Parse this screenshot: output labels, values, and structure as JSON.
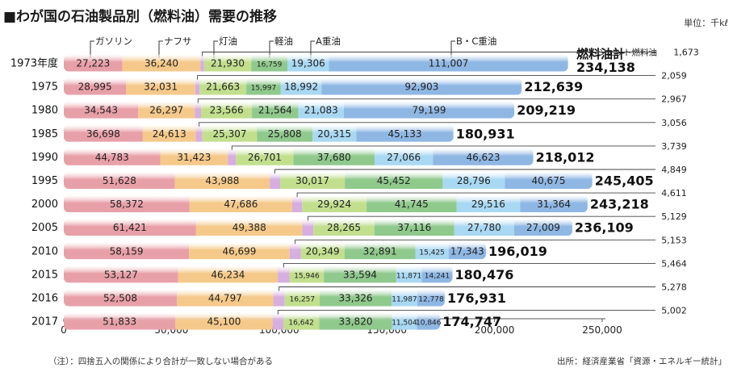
{
  "title": "■わが国の石油製品別（燃料油）需要の推移",
  "unit": "単位：千kℓ",
  "note": "（注）：四捨五入の関係により合計が一致しない場合がある",
  "source": "出所：経済産業省「資源・エネルギー統計」",
  "colors": {
    "gasoline": "#e8a0a8",
    "naphtha": "#f5c98a",
    "jet": "#d7aee0",
    "kerosene": "#c2df8e",
    "light_oil": "#8fc98c",
    "a_heavy": "#a9d8f2",
    "bc_heavy": "#8fb7e4"
  },
  "chart_data": {
    "type": "bar",
    "orientation": "horizontal",
    "stacked": true,
    "title": "■わが国の石油製品別（燃料油）需要の推移",
    "xlim": [
      0,
      250000
    ],
    "xticks": [
      0,
      50000,
      100000,
      150000,
      200000,
      250000
    ],
    "xtick_labels": [
      "0",
      "50,000",
      "100,000",
      "150,000",
      "200,000",
      "250,000"
    ],
    "categories": [
      "1973年度",
      "1975",
      "1980",
      "1985",
      "1990",
      "1995",
      "2000",
      "2005",
      "2010",
      "2015",
      "2016",
      "2017"
    ],
    "series": [
      {
        "key": "gasoline",
        "name": "ガソリン",
        "values": [
          27223,
          28995,
          34543,
          36698,
          44783,
          51628,
          58372,
          61421,
          58159,
          53127,
          52508,
          51833
        ]
      },
      {
        "key": "naphtha",
        "name": "ナフサ",
        "values": [
          36240,
          32031,
          26297,
          24613,
          31423,
          43988,
          47686,
          49388,
          46699,
          46234,
          44797,
          45100
        ]
      },
      {
        "key": "jet",
        "name": "ジェット燃料油",
        "values": [
          1673,
          2059,
          2967,
          3056,
          3739,
          4849,
          4611,
          5129,
          5153,
          5464,
          5278,
          5002
        ]
      },
      {
        "key": "kerosene",
        "name": "灯油",
        "values": [
          21930,
          21663,
          23566,
          25307,
          26701,
          30017,
          29924,
          28265,
          20349,
          15946,
          16257,
          16642
        ]
      },
      {
        "key": "light_oil",
        "name": "軽油",
        "values": [
          16759,
          15997,
          21564,
          25808,
          37680,
          45452,
          41745,
          37116,
          32891,
          33594,
          33326,
          33820
        ]
      },
      {
        "key": "a_heavy",
        "name": "A重油",
        "values": [
          19306,
          18992,
          21083,
          20315,
          27066,
          28796,
          29516,
          27780,
          15425,
          11871,
          11987,
          11504
        ]
      },
      {
        "key": "bc_heavy",
        "name": "B・C重油",
        "values": [
          111007,
          92903,
          79199,
          45133,
          46623,
          40675,
          31364,
          27009,
          17343,
          14241,
          12778,
          10846
        ]
      }
    ],
    "totals_label": "燃料油計",
    "totals": [
      234138,
      212639,
      209219,
      180931,
      218012,
      245405,
      243218,
      236109,
      196019,
      180476,
      176931,
      174747
    ],
    "legend": [
      "ガソリン",
      "ナフサ",
      "灯油",
      "軽油",
      "A重油",
      "B・C重油"
    ],
    "jet_label": "ジェット燃料油"
  }
}
